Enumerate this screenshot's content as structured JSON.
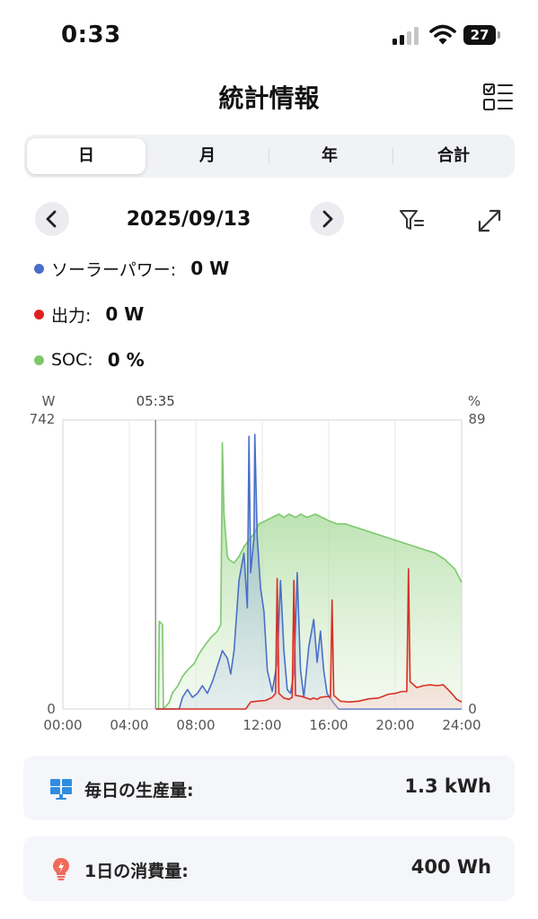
{
  "status": {
    "time": "0:33",
    "battery": "27"
  },
  "header": {
    "title": "統計情報"
  },
  "tabs": [
    {
      "label": "日",
      "active": true
    },
    {
      "label": "月",
      "active": false
    },
    {
      "label": "年",
      "active": false
    },
    {
      "label": "合計",
      "active": false
    }
  ],
  "date_nav": {
    "date": "2025/09/13"
  },
  "legend": [
    {
      "label": "ソーラーパワー:",
      "value": "0 W",
      "color": "#4a6fc9"
    },
    {
      "label": "出力:",
      "value": "0 W",
      "color": "#e02020"
    },
    {
      "label": "SOC:",
      "value": "0 %",
      "color": "#7cc96c"
    }
  ],
  "chart_data": {
    "type": "line",
    "left_axis_unit": "W",
    "right_axis_unit": "%",
    "left_ylim": [
      0,
      742
    ],
    "right_ylim": [
      0,
      89
    ],
    "y_tick_labels_left": [
      "742",
      "0"
    ],
    "y_tick_labels_right": [
      "89",
      "0"
    ],
    "x_ticks": [
      "00:00",
      "04:00",
      "08:00",
      "12:00",
      "16:00",
      "20:00",
      "24:00"
    ],
    "cursor_label": "05:35",
    "cursor_time": 5.58,
    "series": [
      {
        "name": "SOC",
        "axis": "right",
        "color": "#7cc96c",
        "points": [
          [
            5.75,
            0
          ],
          [
            5.8,
            27
          ],
          [
            6.0,
            26
          ],
          [
            6.05,
            0
          ],
          [
            6.4,
            2
          ],
          [
            6.6,
            5
          ],
          [
            6.9,
            7
          ],
          [
            7.2,
            10
          ],
          [
            7.5,
            12
          ],
          [
            7.9,
            14
          ],
          [
            8.2,
            17
          ],
          [
            8.6,
            20
          ],
          [
            8.9,
            22
          ],
          [
            9.3,
            24
          ],
          [
            9.5,
            26
          ],
          [
            9.6,
            82
          ],
          [
            9.7,
            60
          ],
          [
            9.9,
            47
          ],
          [
            10.0,
            46
          ],
          [
            10.3,
            45
          ],
          [
            10.6,
            47
          ],
          [
            10.9,
            50
          ],
          [
            11.2,
            52
          ],
          [
            11.5,
            54
          ],
          [
            11.8,
            57
          ],
          [
            12.2,
            58
          ],
          [
            12.6,
            59
          ],
          [
            13.0,
            60
          ],
          [
            13.3,
            59
          ],
          [
            13.6,
            60
          ],
          [
            14.0,
            59
          ],
          [
            14.3,
            60
          ],
          [
            14.7,
            59
          ],
          [
            15.2,
            60
          ],
          [
            15.6,
            59
          ],
          [
            16.0,
            58
          ],
          [
            16.5,
            57
          ],
          [
            17.0,
            57
          ],
          [
            17.6,
            56
          ],
          [
            18.2,
            55
          ],
          [
            18.8,
            54
          ],
          [
            19.4,
            53
          ],
          [
            20.0,
            52
          ],
          [
            20.6,
            51
          ],
          [
            21.2,
            50
          ],
          [
            21.8,
            49
          ],
          [
            22.4,
            48
          ],
          [
            23.0,
            46
          ],
          [
            23.6,
            43
          ],
          [
            24.0,
            39
          ]
        ]
      },
      {
        "name": "ソーラーパワー",
        "axis": "left",
        "color": "#4a6fc9",
        "points": [
          [
            5.6,
            0
          ],
          [
            7.0,
            0
          ],
          [
            7.2,
            30
          ],
          [
            7.5,
            50
          ],
          [
            7.8,
            30
          ],
          [
            8.1,
            40
          ],
          [
            8.4,
            60
          ],
          [
            8.7,
            40
          ],
          [
            9.0,
            70
          ],
          [
            9.3,
            110
          ],
          [
            9.6,
            150
          ],
          [
            9.9,
            130
          ],
          [
            10.1,
            90
          ],
          [
            10.3,
            150
          ],
          [
            10.6,
            330
          ],
          [
            10.9,
            400
          ],
          [
            11.1,
            260
          ],
          [
            11.2,
            700
          ],
          [
            11.3,
            350
          ],
          [
            11.5,
            440
          ],
          [
            11.55,
            705
          ],
          [
            11.7,
            440
          ],
          [
            11.9,
            310
          ],
          [
            12.1,
            250
          ],
          [
            12.3,
            100
          ],
          [
            12.6,
            45
          ],
          [
            12.9,
            120
          ],
          [
            13.1,
            330
          ],
          [
            13.3,
            150
          ],
          [
            13.5,
            50
          ],
          [
            13.7,
            40
          ],
          [
            13.9,
            90
          ],
          [
            14.1,
            350
          ],
          [
            14.3,
            100
          ],
          [
            14.5,
            30
          ],
          [
            14.8,
            160
          ],
          [
            15.1,
            230
          ],
          [
            15.3,
            120
          ],
          [
            15.5,
            200
          ],
          [
            15.7,
            100
          ],
          [
            15.9,
            40
          ],
          [
            16.3,
            15
          ],
          [
            16.6,
            0
          ],
          [
            24.0,
            0
          ]
        ]
      },
      {
        "name": "出力",
        "axis": "left",
        "color": "#d93025",
        "points": [
          [
            5.6,
            0
          ],
          [
            11.0,
            0
          ],
          [
            11.3,
            18
          ],
          [
            11.7,
            20
          ],
          [
            12.2,
            22
          ],
          [
            12.6,
            30
          ],
          [
            12.8,
            40
          ],
          [
            12.9,
            335
          ],
          [
            13.0,
            40
          ],
          [
            13.3,
            28
          ],
          [
            13.6,
            25
          ],
          [
            13.8,
            30
          ],
          [
            13.9,
            330
          ],
          [
            14.0,
            35
          ],
          [
            14.4,
            32
          ],
          [
            14.9,
            25
          ],
          [
            15.1,
            28
          ],
          [
            15.3,
            25
          ],
          [
            15.5,
            30
          ],
          [
            15.9,
            32
          ],
          [
            16.1,
            30
          ],
          [
            16.2,
            280
          ],
          [
            16.3,
            35
          ],
          [
            16.7,
            20
          ],
          [
            17.2,
            18
          ],
          [
            17.8,
            20
          ],
          [
            18.4,
            26
          ],
          [
            19.0,
            28
          ],
          [
            19.6,
            38
          ],
          [
            20.0,
            40
          ],
          [
            20.4,
            45
          ],
          [
            20.7,
            45
          ],
          [
            20.8,
            360
          ],
          [
            20.9,
            70
          ],
          [
            21.3,
            55
          ],
          [
            21.7,
            60
          ],
          [
            22.1,
            62
          ],
          [
            22.5,
            60
          ],
          [
            22.9,
            62
          ],
          [
            23.4,
            40
          ],
          [
            23.7,
            25
          ],
          [
            24.0,
            18
          ]
        ]
      }
    ]
  },
  "cards": [
    {
      "label": "毎日の生産量:",
      "value": "1.3 kWh"
    },
    {
      "label": "1日の消費量:",
      "value": "400 Wh"
    }
  ]
}
